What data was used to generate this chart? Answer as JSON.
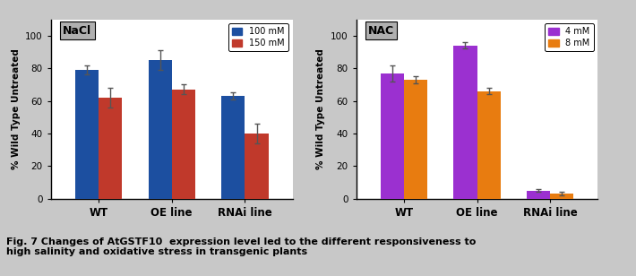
{
  "nacl": {
    "label": "NaCl",
    "categories": [
      "WT",
      "OE line",
      "RNAi line"
    ],
    "series": [
      {
        "label": "100 mM",
        "color": "#1c4fa0",
        "values": [
          79,
          85,
          63
        ],
        "errors": [
          3,
          6,
          2
        ]
      },
      {
        "label": "150 mM",
        "color": "#c0392b",
        "values": [
          62,
          67,
          40
        ],
        "errors": [
          6,
          3,
          6
        ]
      }
    ]
  },
  "nac": {
    "label": "NAC",
    "categories": [
      "WT",
      "OE line",
      "RNAi line"
    ],
    "series": [
      {
        "label": "4 mM",
        "color": "#9b30d0",
        "values": [
          77,
          94,
          5
        ],
        "errors": [
          5,
          2,
          1
        ]
      },
      {
        "label": "8 mM",
        "color": "#e87c10",
        "values": [
          73,
          66,
          3
        ],
        "errors": [
          2,
          2,
          1
        ]
      }
    ]
  },
  "ylabel": "% Wild Type Untreated",
  "ylim": [
    0,
    110
  ],
  "yticks": [
    0,
    20,
    40,
    60,
    80,
    100
  ],
  "bar_width": 0.32,
  "caption": "Fig. 7 Changes of AtGSTF10  expression level led to the different responsiveness to\nhigh salinity and oxidative stress in transgenic plants",
  "caption_fontsize": 8.0,
  "bg_color": "#ffffff",
  "fig_bg": "#c8c8c8"
}
